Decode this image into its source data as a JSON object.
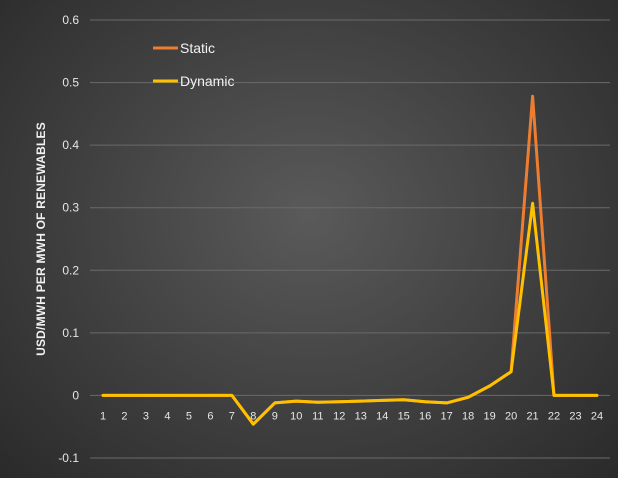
{
  "chart_data": {
    "type": "line",
    "title": "",
    "xlabel": "",
    "ylabel": "USD/MWH PER MWH OF RENEWABLES",
    "categories": [
      "1",
      "2",
      "3",
      "4",
      "5",
      "6",
      "7",
      "8",
      "9",
      "10",
      "11",
      "12",
      "13",
      "14",
      "15",
      "16",
      "17",
      "18",
      "19",
      "20",
      "21",
      "22",
      "23",
      "24"
    ],
    "yticks": [
      "0.6",
      "0.5",
      "0.4",
      "0.3",
      "0.2",
      "0.1",
      "0",
      "-0.1"
    ],
    "ylim": [
      -0.1,
      0.6
    ],
    "grid": true,
    "legend_position": "top-left",
    "series": [
      {
        "name": "Static",
        "color": "#ed7d31",
        "values": [
          0,
          0,
          0,
          0,
          0,
          0,
          0,
          -0.046,
          -0.012,
          -0.009,
          -0.011,
          -0.01,
          -0.009,
          -0.008,
          -0.007,
          -0.01,
          -0.012,
          -0.003,
          0.015,
          0.038,
          0.478,
          0,
          0,
          0
        ]
      },
      {
        "name": "Dynamic",
        "color": "#ffc000",
        "values": [
          0,
          0,
          0,
          0,
          0,
          0,
          0,
          -0.046,
          -0.012,
          -0.009,
          -0.011,
          -0.01,
          -0.009,
          -0.008,
          -0.007,
          -0.01,
          -0.012,
          -0.003,
          0.015,
          0.038,
          0.307,
          0,
          0,
          0
        ]
      }
    ]
  }
}
